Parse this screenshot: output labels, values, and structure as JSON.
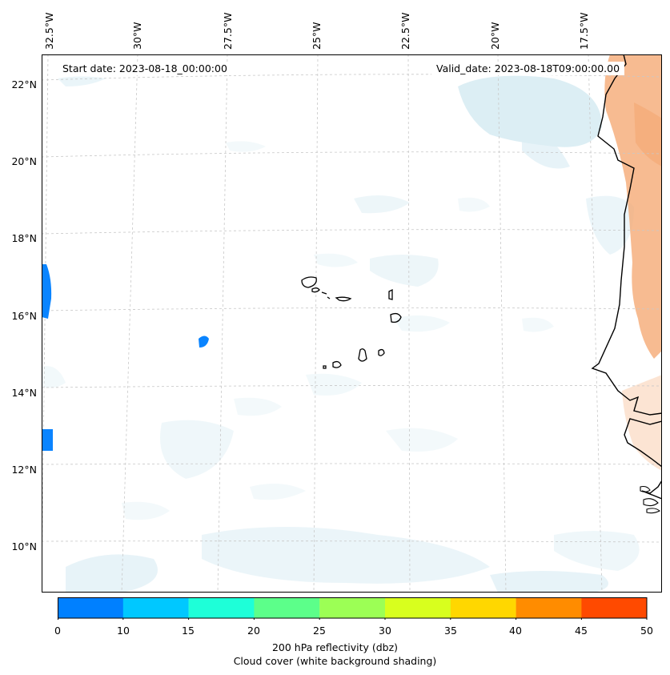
{
  "map": {
    "lon_labels": [
      "32.5°W",
      "30°W",
      "27.5°W",
      "25°W",
      "22.5°W",
      "20°W",
      "17.5°W"
    ],
    "lat_labels": [
      "22°N",
      "20°N",
      "18°N",
      "16°N",
      "14°N",
      "12°N",
      "10°N"
    ],
    "start_date": "Start date: 2023-08-18_00:00:00",
    "valid_date": "Valid_date: 2023-08-18T09:00:00.00",
    "colors": {
      "land": "#000000",
      "grid": "#c8c8c8",
      "cloud": "#d4eaf2",
      "warm": "#f4a46c",
      "reflectivity_low": "#0a84ff"
    }
  },
  "colorbar": {
    "ticks": [
      "0",
      "10",
      "15",
      "20",
      "25",
      "30",
      "35",
      "40",
      "45",
      "50"
    ],
    "colors": [
      "#0080ff",
      "#00c8ff",
      "#1effd8",
      "#5cff8a",
      "#9cff55",
      "#d8ff1e",
      "#ffd700",
      "#ff8c00",
      "#ff4a00"
    ],
    "label_line1": "200 hPa reflectivity (dbz)",
    "label_line2": "Cloud cover (white background shading)"
  }
}
